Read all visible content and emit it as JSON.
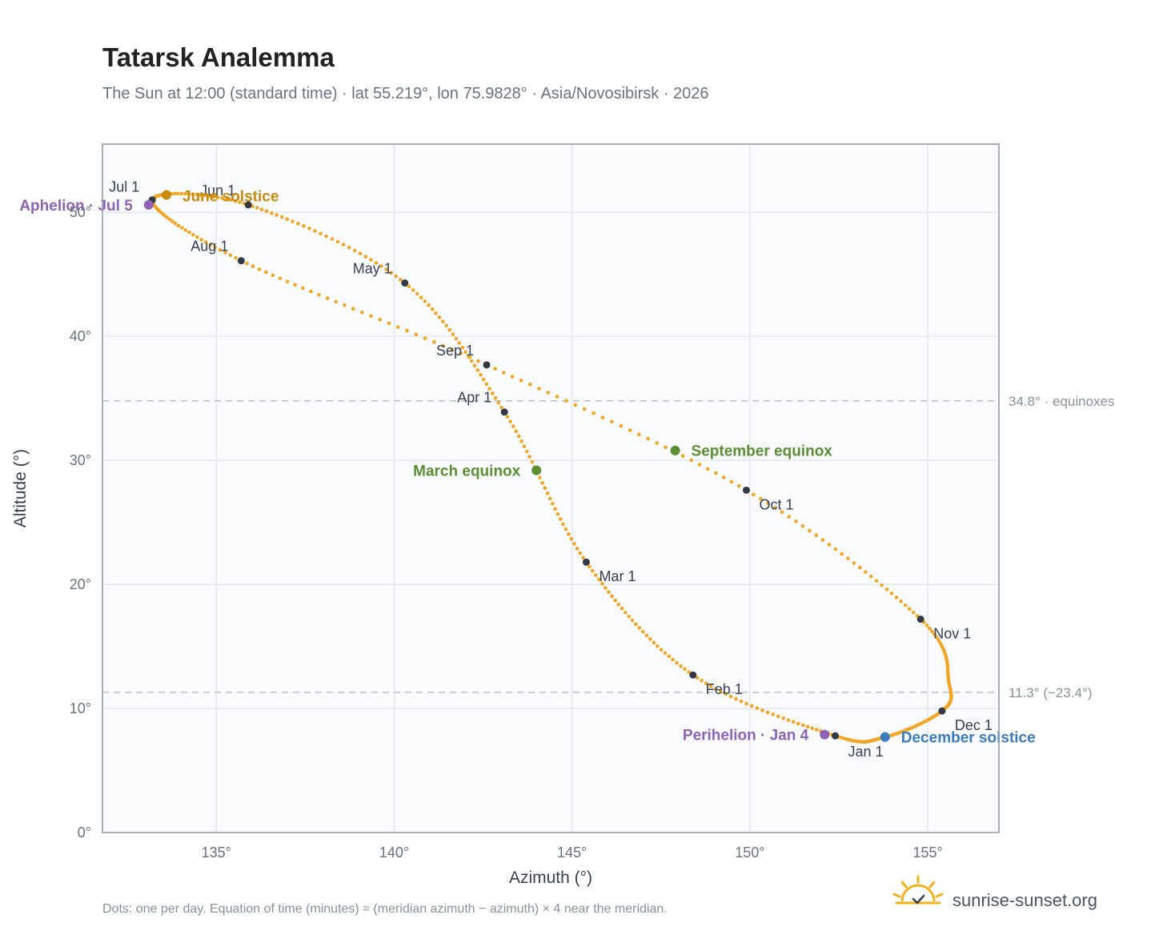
{
  "chart_data": {
    "type": "scatter",
    "title": "Tatarsk Analemma",
    "subtitle": "The Sun at 12:00 (standard time) · lat 55.219°, lon 75.9828° · Asia/Novosibirsk · 2026",
    "xlabel": "Azimuth (°)",
    "ylabel": "Altitude (°)",
    "xlim": [
      131.8,
      157.0
    ],
    "ylim": [
      0,
      55.5
    ],
    "x_ticks": [
      {
        "value": 135,
        "label": "135°"
      },
      {
        "value": 140,
        "label": "140°"
      },
      {
        "value": 145,
        "label": "145°"
      },
      {
        "value": 150,
        "label": "150°"
      },
      {
        "value": 155,
        "label": "155°"
      }
    ],
    "y_ticks": [
      {
        "value": 0,
        "label": "0°"
      },
      {
        "value": 10,
        "label": "10°"
      },
      {
        "value": 20,
        "label": "20°"
      },
      {
        "value": 30,
        "label": "30°"
      },
      {
        "value": 40,
        "label": "40°"
      },
      {
        "value": 50,
        "label": "50°"
      }
    ],
    "grid": true,
    "daily_path_color": "#f2a623",
    "month_marker_color": "#333a44",
    "month_markers": [
      {
        "label": "Jan 1",
        "az": 152.4,
        "alt": 7.8
      },
      {
        "label": "Feb 1",
        "az": 148.4,
        "alt": 12.7
      },
      {
        "label": "Mar 1",
        "az": 145.4,
        "alt": 21.8
      },
      {
        "label": "Apr 1",
        "az": 143.1,
        "alt": 33.9
      },
      {
        "label": "May 1",
        "az": 140.3,
        "alt": 44.3
      },
      {
        "label": "Jun 1",
        "az": 135.9,
        "alt": 50.6
      },
      {
        "label": "Jul 1",
        "az": 133.2,
        "alt": 51.0
      },
      {
        "label": "Aug 1",
        "az": 135.7,
        "alt": 46.1
      },
      {
        "label": "Sep 1",
        "az": 142.6,
        "alt": 37.7
      },
      {
        "label": "Oct 1",
        "az": 149.9,
        "alt": 27.6
      },
      {
        "label": "Nov 1",
        "az": 154.8,
        "alt": 17.2
      },
      {
        "label": "Dec 1",
        "az": 155.4,
        "alt": 9.8
      }
    ],
    "events": [
      {
        "label": "June solstice",
        "az": 133.6,
        "alt": 51.4,
        "color": "#c98a0e"
      },
      {
        "label": "Aphelion · Jul 5",
        "az": 133.1,
        "alt": 50.6,
        "color": "#8e63b5"
      },
      {
        "label": "March equinox",
        "az": 144.0,
        "alt": 29.2,
        "color": "#5b8e31"
      },
      {
        "label": "September equinox",
        "az": 147.9,
        "alt": 30.8,
        "color": "#5b8e31"
      },
      {
        "label": "Perihelion · Jan 4",
        "az": 152.1,
        "alt": 7.9,
        "color": "#8e63b5"
      },
      {
        "label": "December solstice",
        "az": 153.8,
        "alt": 7.7,
        "color": "#3b7bbf"
      }
    ],
    "reference_lines": [
      {
        "alt": 34.8,
        "label": "34.8° · equinoxes"
      },
      {
        "alt": 11.3,
        "label": "11.3° (−23.4°)"
      }
    ]
  },
  "footnote": "Dots: one per day. Equation of time (minutes) ≈ (meridian azimuth − azimuth) × 4 near the meridian.",
  "brand": {
    "name": "sunrise-sunset.org",
    "icon": "sun-check-icon",
    "color": "#f2b21b"
  }
}
